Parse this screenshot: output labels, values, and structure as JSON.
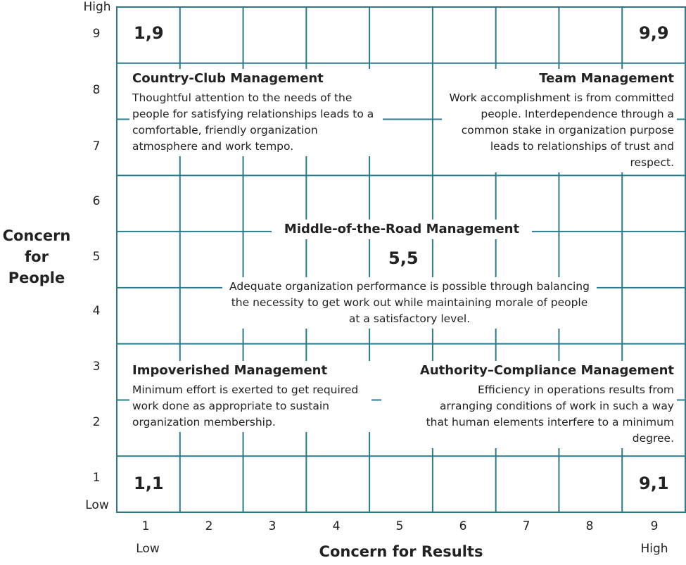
{
  "axes": {
    "y_title": "Concern\nfor\nPeople",
    "x_title": "Concern for Results",
    "y_high": "High",
    "y_low": "Low",
    "x_low": "Low",
    "x_high": "High",
    "ticks": [
      "1",
      "2",
      "3",
      "4",
      "5",
      "6",
      "7",
      "8",
      "9"
    ]
  },
  "coordinates": {
    "c19": "1,9",
    "c99": "9,9",
    "c55": "5,5",
    "c11": "1,1",
    "c91": "9,1"
  },
  "styles": {
    "country_club": {
      "title": "Country-Club Management",
      "description": "Thoughtful attention to the needs of the people for satisfying relationships leads to a comfortable, friendly organization atmosphere and work tempo."
    },
    "team": {
      "title": "Team Management",
      "description": "Work accomplishment is from committed people. Interdependence through a common stake in organization purpose leads to relationships of trust and respect."
    },
    "middle_road": {
      "title": "Middle-of-the-Road Management",
      "description": "Adequate organization performance is possible through balancing the necessity to get work out while maintaining morale of people at a satisfactory level."
    },
    "impoverished": {
      "title": "Impoverished Management",
      "description": "Minimum effort is exerted to get required work done as appropriate to sustain organization membership."
    },
    "authority_compliance": {
      "title": "Authority–Compliance Management",
      "description": "Efficiency in operations results from arranging conditions of work in such a way that human elements interfere to a minimum degree."
    }
  },
  "colors": {
    "grid_line": "#2c7a87",
    "text": "#222222"
  }
}
